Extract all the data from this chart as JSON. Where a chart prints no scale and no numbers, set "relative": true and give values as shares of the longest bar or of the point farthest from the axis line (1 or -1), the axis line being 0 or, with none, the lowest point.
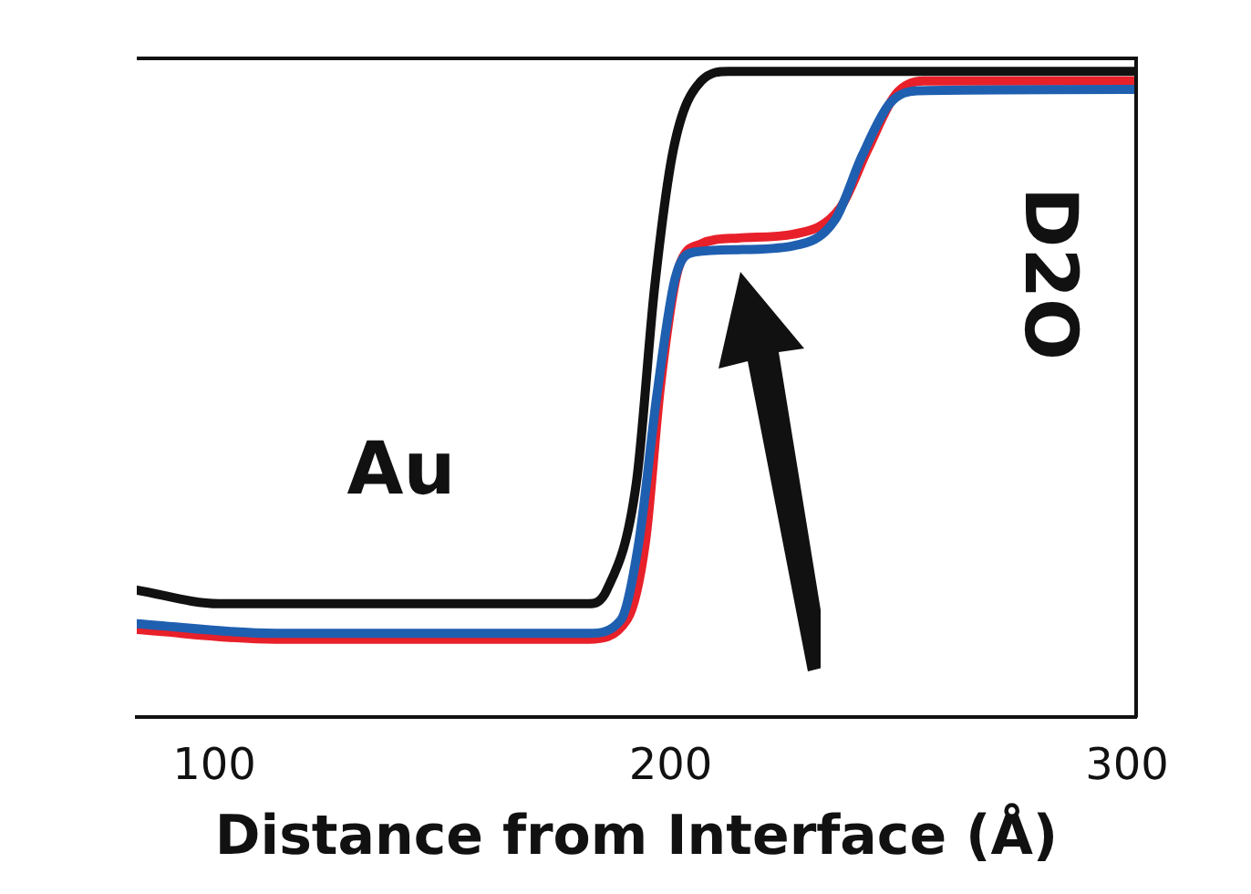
{
  "chart_data": {
    "type": "line",
    "xlabel": "Distance from Interface (Å)",
    "relative": true,
    "xlim": [
      83,
      302
    ],
    "xticks": [
      100,
      200,
      300
    ],
    "grid": false,
    "legend": false,
    "marker": "none",
    "line_style": "solid",
    "annotations": [
      "Au",
      "D2O"
    ],
    "series": [
      {
        "color": "#1f5fb0",
        "x": [
          83,
          113.4,
          182,
          189,
          193,
          197,
          201,
          205,
          214.8,
          227,
          236,
          242,
          248,
          254,
          302
        ],
        "values": [
          0.145,
          0.13,
          0.13,
          0.15,
          0.27,
          0.5,
          0.68,
          0.72,
          0.724,
          0.73,
          0.77,
          0.87,
          0.95,
          0.97,
          0.972
        ]
      },
      {
        "color": "#e8202a",
        "x": [
          83,
          113.4,
          182,
          190.5,
          194.5,
          197.8,
          201.8,
          206.7,
          214.8,
          227,
          237.1,
          243.2,
          249.3,
          255.4,
          302
        ],
        "values": [
          0.136,
          0.121,
          0.121,
          0.152,
          0.273,
          0.515,
          0.697,
          0.733,
          0.742,
          0.748,
          0.788,
          0.879,
          0.964,
          0.985,
          0.985
        ]
      },
      {
        "color": "#111111",
        "x": [
          83,
          101,
          182,
          186,
          192.5,
          196.5,
          200.6,
          206.7,
          212.8,
          302
        ],
        "values": [
          0.197,
          0.176,
          0.176,
          0.197,
          0.364,
          0.667,
          0.879,
          0.985,
          1,
          1
        ]
      }
    ]
  }
}
